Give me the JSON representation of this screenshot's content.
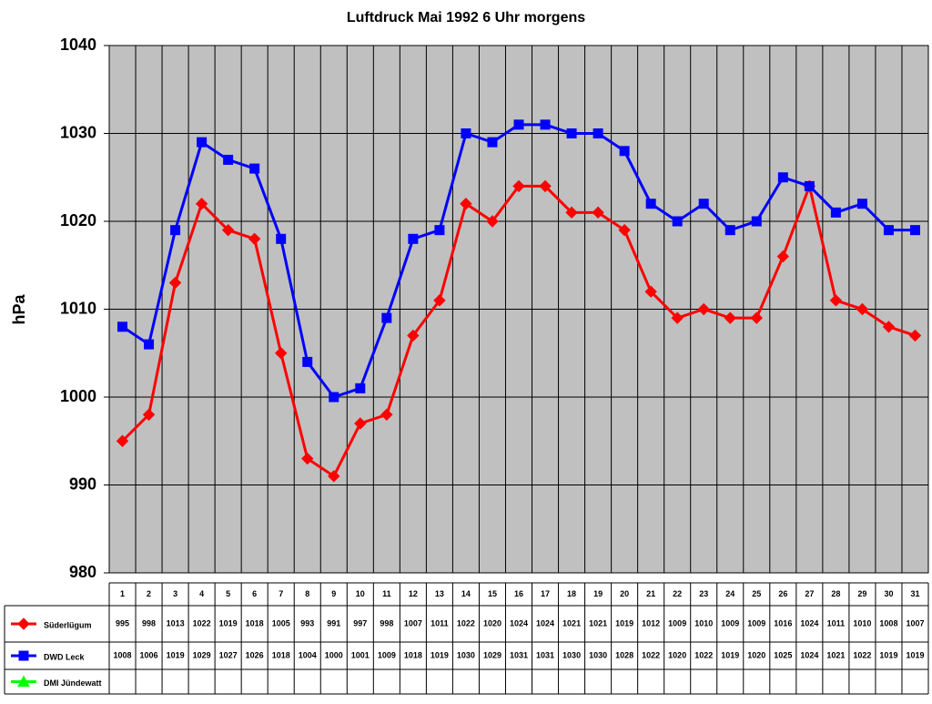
{
  "chart_data": {
    "type": "line",
    "title": "Luftdruck Mai 1992 6 Uhr morgens",
    "y_label": "hPa",
    "categories": [
      "1",
      "2",
      "3",
      "4",
      "5",
      "6",
      "7",
      "8",
      "9",
      "10",
      "11",
      "12",
      "13",
      "14",
      "15",
      "16",
      "17",
      "18",
      "19",
      "20",
      "21",
      "22",
      "23",
      "24",
      "25",
      "26",
      "27",
      "28",
      "29",
      "30",
      "31"
    ],
    "series": [
      {
        "name": "Süderlügum",
        "color": "#ff0000",
        "marker": "diamond",
        "values": [
          995,
          998,
          1013,
          1022,
          1019,
          1018,
          1005,
          993,
          991,
          997,
          998,
          1007,
          1011,
          1022,
          1020,
          1024,
          1024,
          1021,
          1021,
          1019,
          1012,
          1009,
          1010,
          1009,
          1009,
          1016,
          1024,
          1011,
          1010,
          1008,
          1007
        ]
      },
      {
        "name": "DWD Leck",
        "color": "#0000ff",
        "marker": "square",
        "values": [
          1008,
          1006,
          1019,
          1029,
          1027,
          1026,
          1018,
          1004,
          1000,
          1001,
          1009,
          1018,
          1019,
          1030,
          1029,
          1031,
          1031,
          1030,
          1030,
          1028,
          1022,
          1020,
          1022,
          1019,
          1020,
          1025,
          1024,
          1021,
          1022,
          1019,
          1019
        ]
      },
      {
        "name": "DMI Jündewatt",
        "color": "#00ff00",
        "marker": "triangle",
        "values": [
          null,
          null,
          null,
          null,
          null,
          null,
          null,
          null,
          null,
          null,
          null,
          null,
          null,
          null,
          null,
          null,
          null,
          null,
          null,
          null,
          null,
          null,
          null,
          null,
          null,
          null,
          null,
          null,
          null,
          null,
          null
        ]
      }
    ],
    "ylim": [
      980,
      1040
    ],
    "yticks": [
      980,
      990,
      1000,
      1010,
      1020,
      1030,
      1040
    ],
    "grid": true,
    "plot_background": "#c0c0c0"
  }
}
